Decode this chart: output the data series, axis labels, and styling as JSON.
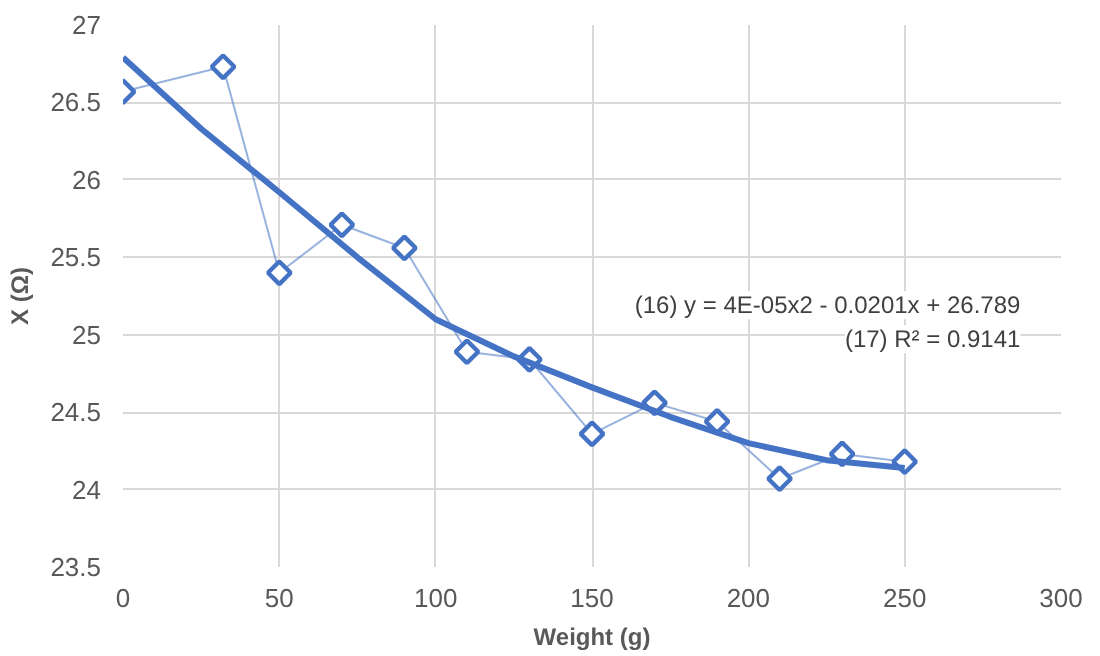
{
  "chart_data": {
    "type": "line",
    "xlabel": "Weight (g)",
    "ylabel": "X (Ω)",
    "xlim": [
      0,
      300
    ],
    "xticks": [
      0,
      50,
      100,
      150,
      200,
      250,
      300
    ],
    "ylim": [
      23.5,
      27
    ],
    "yticks": [
      23.5,
      24,
      24.5,
      25,
      25.5,
      26,
      26.5,
      27
    ],
    "grid": true,
    "series": [
      {
        "color": "#4472c4",
        "marker": "diamond",
        "line_style": "solid",
        "x": [
          0,
          32,
          50,
          70,
          90,
          110,
          130,
          150,
          170,
          190,
          210,
          230,
          250
        ],
        "values": [
          26.57,
          26.73,
          25.4,
          25.71,
          25.56,
          24.89,
          24.84,
          24.36,
          24.56,
          24.44,
          24.07,
          24.23,
          24.18
        ]
      },
      {
        "color": "#4472c4",
        "marker": "none",
        "line_style": "solid",
        "x": [
          0,
          25,
          50,
          75,
          100,
          125,
          150,
          175,
          200,
          225,
          250
        ],
        "values": [
          26.79,
          26.33,
          25.92,
          25.5,
          25.1,
          24.86,
          24.66,
          24.47,
          24.3,
          24.19,
          24.14
        ]
      }
    ],
    "annotations": [
      "(16) y = 4E-05x2 - 0.0201x + 26.789",
      "(17) R² = 0.9141"
    ]
  }
}
